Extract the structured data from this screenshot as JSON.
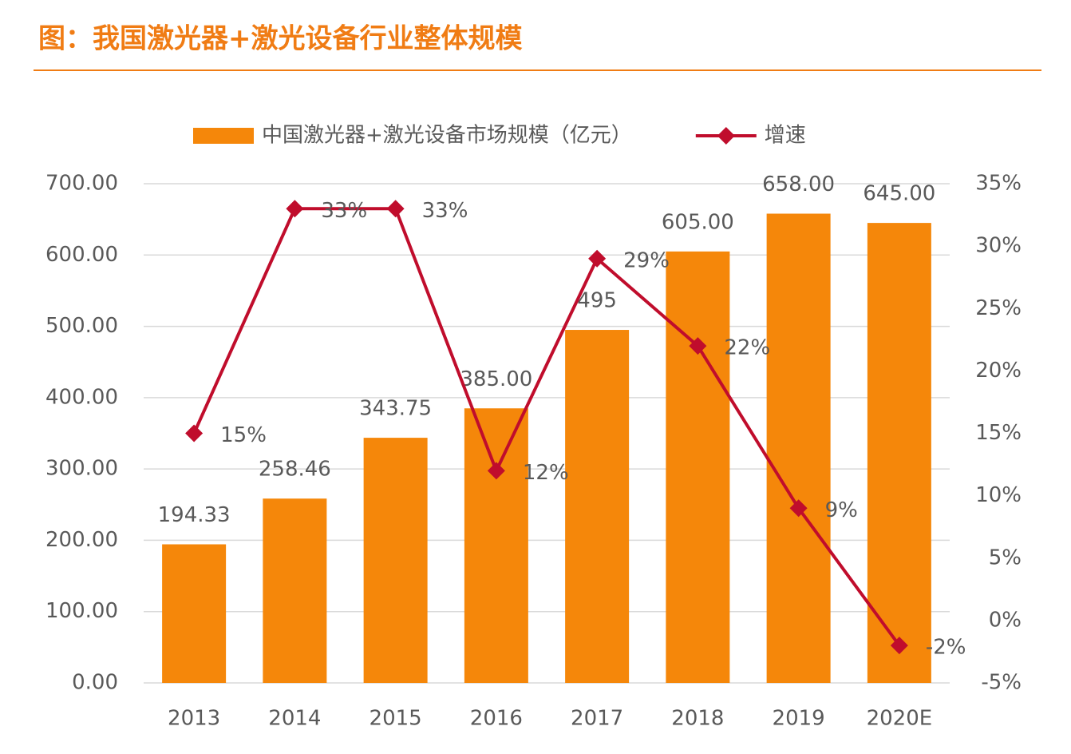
{
  "chart_data": {
    "type": "bar_line",
    "title": "图：我国激光器+激光设备行业整体规模",
    "categories": [
      "2013",
      "2014",
      "2015",
      "2016",
      "2017",
      "2018",
      "2019",
      "2020E"
    ],
    "series": [
      {
        "name": "中国激光器+激光设备市场规模（亿元）",
        "type": "bar",
        "color": "#f5870a",
        "values": [
          194.33,
          258.46,
          343.75,
          385,
          495,
          605,
          658,
          645
        ],
        "value_labels": [
          "194.33",
          "258.46",
          "343.75",
          "385.00",
          "495",
          "605.00",
          "658.00",
          "645.00"
        ]
      },
      {
        "name": "增速",
        "type": "line",
        "axis": "y2",
        "color": "#c00d2c",
        "values": [
          15,
          33,
          33,
          12,
          29,
          22,
          9,
          -2
        ],
        "value_labels": [
          "15%",
          "33%",
          "33%",
          "12%",
          "29%",
          "22%",
          "9%",
          "-2%"
        ]
      }
    ],
    "ylim": [
      0,
      700
    ],
    "yticks": [
      {
        "value": 0,
        "label": "0.00"
      },
      {
        "value": 100,
        "label": "100.00"
      },
      {
        "value": 200,
        "label": "200.00"
      },
      {
        "value": 300,
        "label": "300.00"
      },
      {
        "value": 400,
        "label": "400.00"
      },
      {
        "value": 500,
        "label": "500.00"
      },
      {
        "value": 600,
        "label": "600.00"
      },
      {
        "value": 700,
        "label": "700.00"
      }
    ],
    "y2lim": [
      -5,
      35
    ],
    "y2ticks": [
      {
        "value": -5,
        "label": "-5%"
      },
      {
        "value": 0,
        "label": "0%"
      },
      {
        "value": 5,
        "label": "5%"
      },
      {
        "value": 10,
        "label": "10%"
      },
      {
        "value": 15,
        "label": "15%"
      },
      {
        "value": 20,
        "label": "20%"
      },
      {
        "value": 25,
        "label": "25%"
      },
      {
        "value": 30,
        "label": "30%"
      },
      {
        "value": 35,
        "label": "35%"
      }
    ],
    "grid": true,
    "legend": "top"
  }
}
